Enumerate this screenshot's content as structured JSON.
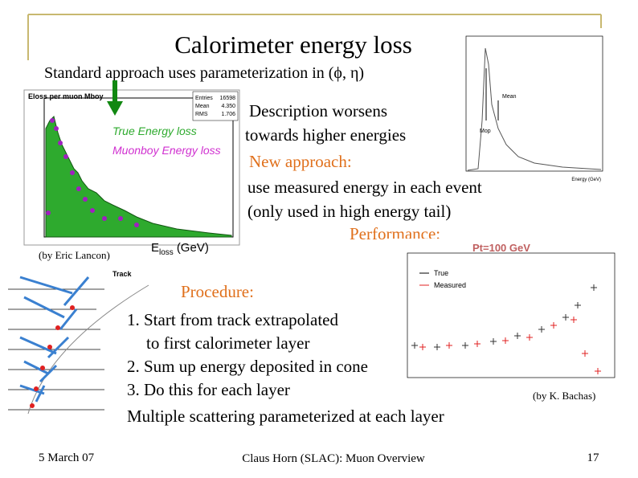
{
  "header": {
    "title": "Calorimeter energy loss",
    "subtitle": "Standard approach uses parameterization in (ϕ, η)"
  },
  "left_plot": {
    "title": "Eloss per muon Mboy",
    "stats": [
      {
        "label": "Entries",
        "value": "16598"
      },
      {
        "label": "Mean",
        "value": "4.350"
      },
      {
        "label": "RMS",
        "value": "1.706"
      }
    ],
    "legend": [
      "True Energy loss",
      "Muonboy Energy loss"
    ],
    "x_label": {
      "symbol": "E",
      "subscript": "loss",
      "unit": "(GeV)"
    },
    "credit": "(by Eric Lancon)"
  },
  "top_right_plot": {
    "labels": [
      "Mean",
      "Mop"
    ],
    "x_label": "Energy (GeV)"
  },
  "description": [
    "Description worsens",
    "towards higher energies"
  ],
  "new_approach": {
    "heading": "New approach:",
    "lines": [
      "use measured energy in each event",
      "(only used in high energy tail)"
    ]
  },
  "performance": {
    "heading": "Performance:",
    "plot_title": "Pt=100 GeV",
    "legend": [
      "True",
      "Measured"
    ],
    "credit": "(by K. Bachas)"
  },
  "diagram": {
    "label": "Track"
  },
  "procedure": {
    "heading": "Procedure:",
    "steps": [
      "1. Start from track extrapolated",
      "to first calorimeter layer",
      "2. Sum up energy deposited in cone",
      "3. Do this for each layer"
    ],
    "note": "Multiple scattering parameterized at each layer"
  },
  "footer": {
    "date": "5 March 07",
    "center": "Claus Horn (SLAC): Muon Overview",
    "page": "17"
  }
}
